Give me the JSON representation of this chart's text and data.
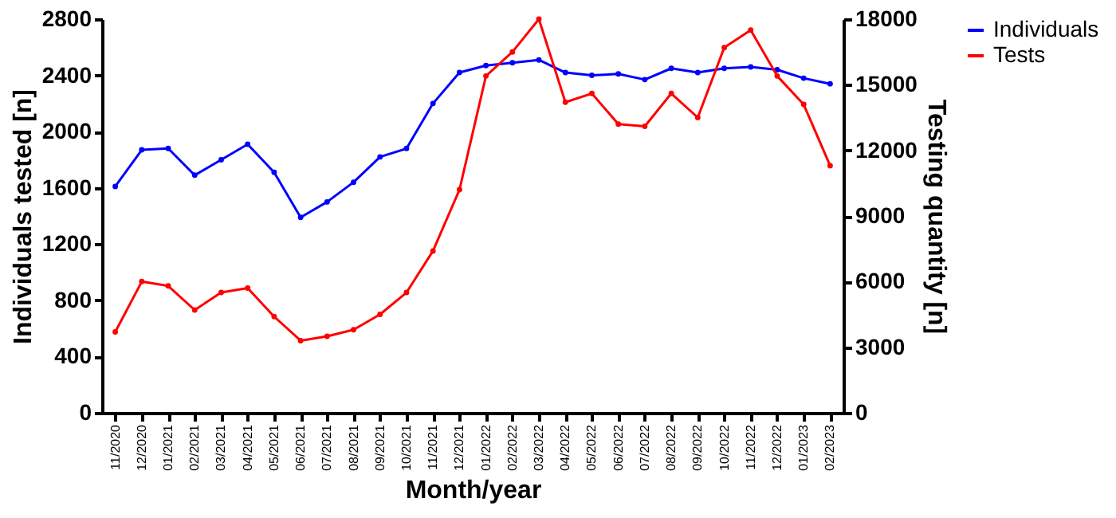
{
  "chart_data": {
    "type": "line",
    "xlabel": "Month/year",
    "ylabel": "Individuals tested [n]",
    "y2label": "Testing quantity [n]",
    "categories": [
      "11/2020",
      "12/2020",
      "01/2021",
      "02/2021",
      "03/2021",
      "04/2021",
      "05/2021",
      "06/2021",
      "07/2021",
      "08/2021",
      "09/2021",
      "10/2021",
      "11/2021",
      "12/2021",
      "01/2022",
      "02/2022",
      "03/2022",
      "04/2022",
      "05/2022",
      "06/2022",
      "07/2022",
      "08/2022",
      "09/2022",
      "10/2022",
      "11/2022",
      "12/2022",
      "01/2023",
      "02/2023"
    ],
    "series": [
      {
        "name": "Individuals",
        "color": "#0000ff",
        "values": [
          1610,
          1870,
          1880,
          1690,
          1800,
          1910,
          1710,
          1390,
          1500,
          1640,
          1820,
          1880,
          2200,
          2420,
          2470,
          2490,
          2510,
          2420,
          2400,
          2410,
          2370,
          2450,
          2420,
          2450,
          2460,
          2440,
          2380,
          2340
        ]
      },
      {
        "name": "Tests",
        "color": "#ff0000",
        "axis": "y2",
        "values": [
          3700,
          6000,
          5800,
          4700,
          5500,
          5700,
          4400,
          3300,
          3500,
          3800,
          4500,
          5500,
          7400,
          10200,
          15400,
          16500,
          18000,
          14200,
          14600,
          13200,
          13100,
          14600,
          13500,
          16700,
          17500,
          15400,
          14100,
          11300
        ]
      }
    ],
    "ylim": [
      0,
      2800
    ],
    "yticks": [
      0,
      400,
      800,
      1200,
      1600,
      2000,
      2400,
      2800
    ],
    "y2lim": [
      0,
      18000
    ],
    "y2ticks": [
      0,
      3000,
      6000,
      9000,
      12000,
      15000,
      18000
    ],
    "grid": false,
    "legend": "top right",
    "marker": "circle",
    "line_style": "solid"
  }
}
